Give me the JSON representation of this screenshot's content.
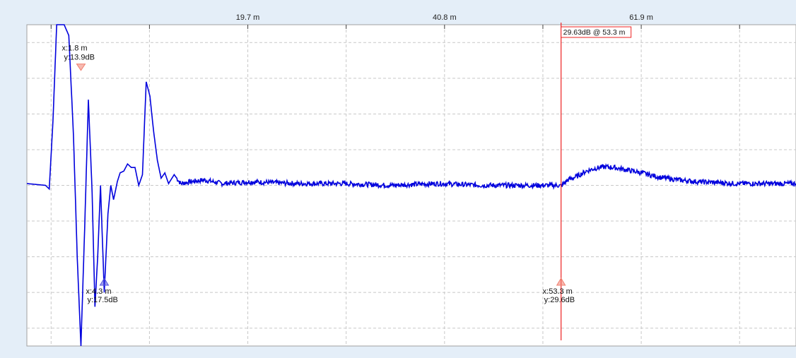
{
  "colors": {
    "background": "#e4eef8",
    "plot_background": "#ffffff",
    "grid": "#c8c8c8",
    "trace": "#0000dd",
    "cursor": "#ee2222",
    "marker_a": "#f08070",
    "marker_b": "#5555dd"
  },
  "chart_data": {
    "type": "line",
    "title": "",
    "xlabel": "",
    "ylabel": "",
    "x_unit": "m",
    "y_unit": "dB",
    "xlim": [
      -4,
      78.5
    ],
    "ylim": [
      -1.5,
      7.5
    ],
    "grid": true,
    "legend": "none",
    "x_ticks": [
      19.7,
      40.8,
      61.9
    ],
    "x_tick_labels": [
      "19.7 m",
      "40.8 m",
      "61.9 m"
    ],
    "series": [
      {
        "name": "",
        "x": [
          -4.0,
          -2.0,
          -1.6,
          -1.2,
          -0.8,
          -0.4,
          0.0,
          0.5,
          1.0,
          1.4,
          1.8,
          2.2,
          2.6,
          3.0,
          3.3,
          3.6,
          3.9,
          4.3,
          4.7,
          5.0,
          5.3,
          5.7,
          6.0,
          6.4,
          6.8,
          7.2,
          7.6,
          8.0,
          8.4,
          8.8,
          9.2,
          9.6,
          10.0,
          10.4,
          10.8,
          11.2,
          11.8,
          12.5,
          13.5,
          15,
          17,
          20,
          25,
          30,
          35,
          40,
          45,
          50,
          53.0,
          53.3,
          53.6,
          54.0,
          55.0,
          56.0,
          57.0,
          58.0,
          59.0,
          60.0,
          61.0,
          62.0,
          63.0,
          64.0,
          66.0,
          68.0,
          70.0,
          72.0,
          74.0,
          76.0,
          78.5
        ],
        "y": [
          3.05,
          3.0,
          2.9,
          4.8,
          7.5,
          7.5,
          7.5,
          7.2,
          4.4,
          1.0,
          -1.5,
          1.8,
          5.4,
          2.8,
          -0.4,
          1.0,
          3.0,
          0.0,
          2.2,
          3.0,
          2.6,
          3.1,
          3.35,
          3.4,
          3.6,
          3.5,
          3.5,
          3.0,
          3.3,
          5.9,
          5.5,
          4.5,
          3.7,
          3.2,
          3.35,
          3.05,
          3.3,
          3.05,
          3.1,
          3.15,
          3.05,
          3.1,
          3.05,
          3.05,
          3.0,
          3.05,
          3.0,
          3.0,
          3.0,
          2.98,
          3.05,
          3.15,
          3.25,
          3.4,
          3.48,
          3.52,
          3.5,
          3.45,
          3.4,
          3.35,
          3.28,
          3.22,
          3.15,
          3.1,
          3.08,
          3.05,
          3.05,
          3.05,
          3.05
        ]
      }
    ],
    "markers": [
      {
        "id": "a",
        "x_label": "x:1.8 m",
        "y_label": "y:13.9dB",
        "x": 1.8,
        "y": 6.3,
        "pointing": "down"
      },
      {
        "id": "b",
        "x_label": "x:4.3 m",
        "y_label": "y:17.5dB",
        "x": 4.3,
        "y": 0.3,
        "pointing": "up"
      },
      {
        "id": "c",
        "x_label": "x:53.3 m",
        "y_label": "y:29.6dB",
        "x": 53.3,
        "y": 0.3,
        "pointing": "up"
      }
    ],
    "cursor": {
      "x": 53.3,
      "label": "29.63dB @ 53.3 m"
    }
  }
}
